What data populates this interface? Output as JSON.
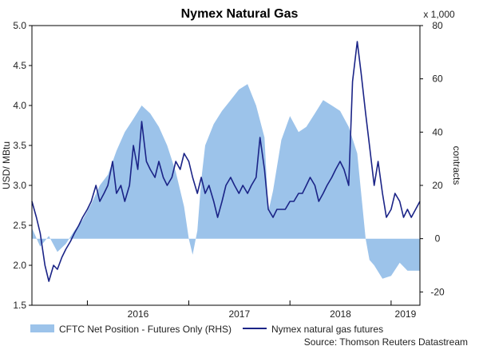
{
  "chart_data": {
    "type": "line",
    "title": "Nymex Natural Gas",
    "ylabel_left": "USD/ MBtu",
    "ylabel_right": "contracts",
    "right_unit": "x 1,000",
    "source": "Source: Thomson Reuters Datastream",
    "x_range": [
      "2015-06-15",
      "2019-04-15"
    ],
    "x_ticks": [
      "2016",
      "2017",
      "2018",
      "2019"
    ],
    "ylim_left": [
      1.5,
      5.0
    ],
    "yticks_left": [
      "1.5",
      "2.0",
      "2.5",
      "3.0",
      "3.5",
      "4.0",
      "4.5",
      "5.0"
    ],
    "ylim_right": [
      -25,
      80
    ],
    "yticks_right": [
      "-20",
      "0",
      "20",
      "40",
      "60",
      "80"
    ],
    "grid": false,
    "legend_position": "bottom",
    "colors": {
      "area": "#9cc3ea",
      "line": "#1b2487",
      "axis": "#000000"
    },
    "series": [
      {
        "name": "CFTC Net Position - Futures Only (RHS)",
        "type": "area",
        "axis": "right",
        "x": [
          "2015-06-15",
          "2015-07-15",
          "2015-08-15",
          "2015-09-15",
          "2015-10-15",
          "2015-11-15",
          "2015-12-15",
          "2016-01-15",
          "2016-02-15",
          "2016-03-15",
          "2016-04-15",
          "2016-05-15",
          "2016-06-15",
          "2016-07-15",
          "2016-08-15",
          "2016-09-15",
          "2016-10-15",
          "2016-11-15",
          "2016-12-15",
          "2017-01-01",
          "2017-01-15",
          "2017-02-01",
          "2017-02-15",
          "2017-03-01",
          "2017-04-01",
          "2017-05-01",
          "2017-06-01",
          "2017-07-01",
          "2017-08-01",
          "2017-09-01",
          "2017-10-01",
          "2017-10-15",
          "2017-11-01",
          "2017-12-01",
          "2018-01-01",
          "2018-02-01",
          "2018-03-01",
          "2018-04-01",
          "2018-05-01",
          "2018-06-01",
          "2018-07-01",
          "2018-08-01",
          "2018-09-01",
          "2018-10-01",
          "2018-10-15",
          "2018-11-01",
          "2018-12-01",
          "2019-01-01",
          "2019-02-01",
          "2019-03-01",
          "2019-04-15"
        ],
        "values": [
          4,
          -3,
          1,
          -5,
          -2,
          3,
          7,
          13,
          20,
          24,
          33,
          40,
          45,
          50,
          47,
          42,
          35,
          25,
          12,
          0,
          -6,
          3,
          22,
          35,
          43,
          48,
          52,
          56,
          58,
          50,
          38,
          10,
          18,
          37,
          46,
          40,
          42,
          47,
          52,
          50,
          48,
          42,
          32,
          0,
          -8,
          -10,
          -15,
          -14,
          -9,
          -12,
          -12
        ]
      },
      {
        "name": "Nymex natural gas futures",
        "type": "line",
        "axis": "left",
        "x": [
          "2015-06-15",
          "2015-07-01",
          "2015-07-15",
          "2015-08-01",
          "2015-08-15",
          "2015-09-01",
          "2015-09-15",
          "2015-10-01",
          "2015-10-15",
          "2015-11-01",
          "2015-11-15",
          "2015-12-01",
          "2015-12-15",
          "2016-01-01",
          "2016-01-15",
          "2016-02-01",
          "2016-02-15",
          "2016-03-01",
          "2016-03-15",
          "2016-04-01",
          "2016-04-15",
          "2016-05-01",
          "2016-05-15",
          "2016-06-01",
          "2016-06-15",
          "2016-07-01",
          "2016-07-15",
          "2016-08-01",
          "2016-08-15",
          "2016-09-01",
          "2016-09-15",
          "2016-10-01",
          "2016-10-15",
          "2016-11-01",
          "2016-11-15",
          "2016-12-01",
          "2016-12-15",
          "2017-01-01",
          "2017-01-15",
          "2017-02-01",
          "2017-02-15",
          "2017-03-01",
          "2017-03-15",
          "2017-04-01",
          "2017-04-15",
          "2017-05-01",
          "2017-05-15",
          "2017-06-01",
          "2017-06-15",
          "2017-07-01",
          "2017-07-15",
          "2017-08-01",
          "2017-08-15",
          "2017-09-01",
          "2017-09-15",
          "2017-10-01",
          "2017-10-15",
          "2017-11-01",
          "2017-11-15",
          "2017-12-01",
          "2017-12-15",
          "2018-01-01",
          "2018-01-15",
          "2018-02-01",
          "2018-02-15",
          "2018-03-01",
          "2018-03-15",
          "2018-04-01",
          "2018-04-15",
          "2018-05-01",
          "2018-05-15",
          "2018-06-01",
          "2018-06-15",
          "2018-07-01",
          "2018-07-15",
          "2018-08-01",
          "2018-08-15",
          "2018-09-01",
          "2018-09-15",
          "2018-10-01",
          "2018-10-15",
          "2018-11-01",
          "2018-11-15",
          "2018-12-01",
          "2018-12-15",
          "2019-01-01",
          "2019-01-15",
          "2019-02-01",
          "2019-02-15",
          "2019-03-01",
          "2019-03-15",
          "2019-04-15"
        ],
        "values": [
          2.8,
          2.6,
          2.4,
          2.0,
          1.8,
          2.0,
          1.95,
          2.1,
          2.2,
          2.3,
          2.4,
          2.5,
          2.6,
          2.7,
          2.8,
          3.0,
          2.8,
          2.9,
          3.0,
          3.3,
          2.9,
          3.0,
          2.8,
          3.0,
          3.5,
          3.2,
          3.8,
          3.3,
          3.2,
          3.1,
          3.3,
          3.1,
          3.0,
          3.1,
          3.3,
          3.2,
          3.4,
          3.3,
          3.1,
          2.9,
          3.1,
          2.9,
          3.0,
          2.8,
          2.6,
          2.8,
          3.0,
          3.1,
          3.0,
          2.9,
          3.0,
          2.9,
          3.0,
          3.1,
          3.6,
          3.2,
          2.7,
          2.6,
          2.7,
          2.7,
          2.7,
          2.8,
          2.8,
          2.9,
          2.9,
          3.0,
          3.1,
          3.0,
          2.8,
          2.9,
          3.0,
          3.1,
          3.2,
          3.3,
          3.2,
          3.0,
          4.3,
          4.8,
          4.4,
          3.9,
          3.5,
          3.0,
          3.3,
          2.9,
          2.6,
          2.7,
          2.9,
          2.8,
          2.6,
          2.7,
          2.6,
          2.8
        ]
      }
    ]
  }
}
